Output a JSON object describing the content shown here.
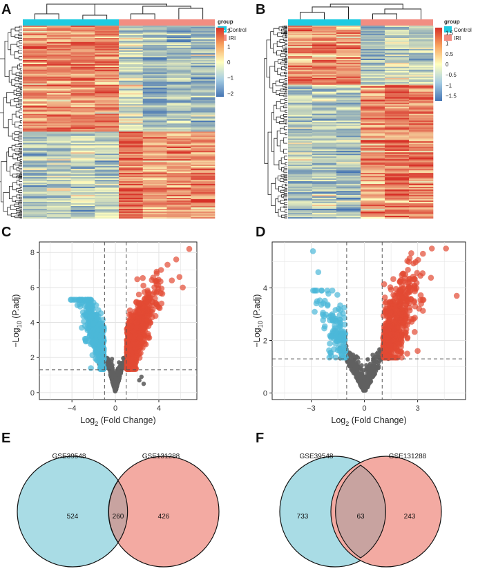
{
  "colors": {
    "control": "#1ECBE1",
    "iri": "#F28D82",
    "heat_low": "#4575B4",
    "heat_mid": "#FFFFBF",
    "heat_high": "#D73027",
    "down": "#4BB8D9",
    "up": "#E34A33",
    "ns": "#606060",
    "venn_left": "#A9DCE5",
    "venn_right": "#F3AAA2",
    "venn_overlap": "#C8A3A0"
  },
  "panels": {
    "A": "A",
    "B": "B",
    "C": "C",
    "D": "D",
    "E": "E",
    "F": "F"
  },
  "chart_data": [
    {
      "panel": "A",
      "type": "heatmap",
      "legend_group_title": "group",
      "groups": [
        "Control",
        "IRI"
      ],
      "columns_per_group": [
        4,
        4
      ],
      "scale_ticks": [
        2,
        1,
        0,
        -1,
        -2
      ],
      "cluster_blocks": [
        "up in Control",
        "up in IRI"
      ],
      "block_split_fraction": 0.55
    },
    {
      "panel": "B",
      "type": "heatmap",
      "legend_group_title": "group",
      "groups": [
        "Control",
        "IRI"
      ],
      "columns_per_group": [
        3,
        3
      ],
      "scale_ticks": [
        1.5,
        1,
        0.5,
        0,
        -0.5,
        -1,
        -1.5
      ],
      "block_split_fraction": 0.31
    },
    {
      "panel": "C",
      "type": "scatter",
      "subtype": "volcano",
      "xlabel_main": "Log",
      "xlabel_sub": "2",
      "xlabel_rest": " (Fold Change)",
      "ylabel_pre": "−Log",
      "ylabel_sub": "10",
      "ylabel_rest": " (P.adj)",
      "xlim": [
        -7,
        7.5
      ],
      "ylim": [
        -0.4,
        8.6
      ],
      "xticks": [
        -4,
        0,
        4
      ],
      "xtick_labels": [
        "−4",
        "0",
        "4"
      ],
      "yticks": [
        0,
        2,
        4,
        6,
        8
      ],
      "vlines": [
        -1,
        1
      ],
      "hline": 1.3,
      "point_counts": {
        "down": 524,
        "up": 686,
        "ns": 420
      }
    },
    {
      "panel": "D",
      "type": "scatter",
      "subtype": "volcano",
      "xlabel_main": "Log",
      "xlabel_sub": "2",
      "xlabel_rest": " (Fold Change)",
      "ylabel_pre": "−Log",
      "ylabel_sub": "10",
      "ylabel_rest": " (P.adj)",
      "xlim": [
        -5.2,
        5.7
      ],
      "ylim": [
        -0.25,
        5.75
      ],
      "xticks": [
        -3,
        0,
        3
      ],
      "xtick_labels": [
        "−3",
        "0",
        "3"
      ],
      "yticks": [
        0,
        2,
        4
      ],
      "vlines": [
        -1,
        1
      ],
      "hline": 1.3,
      "point_counts": {
        "down": 140,
        "up": 520,
        "ns": 380
      }
    },
    {
      "panel": "E",
      "type": "venn",
      "sets": [
        "GSE39548",
        "GSE131288"
      ],
      "only_left": "524",
      "overlap": "260",
      "only_right": "426"
    },
    {
      "panel": "F",
      "type": "venn",
      "sets": [
        "GSE39548",
        "GSE131288"
      ],
      "only_left": "733",
      "overlap": "63",
      "only_right": "243"
    }
  ]
}
